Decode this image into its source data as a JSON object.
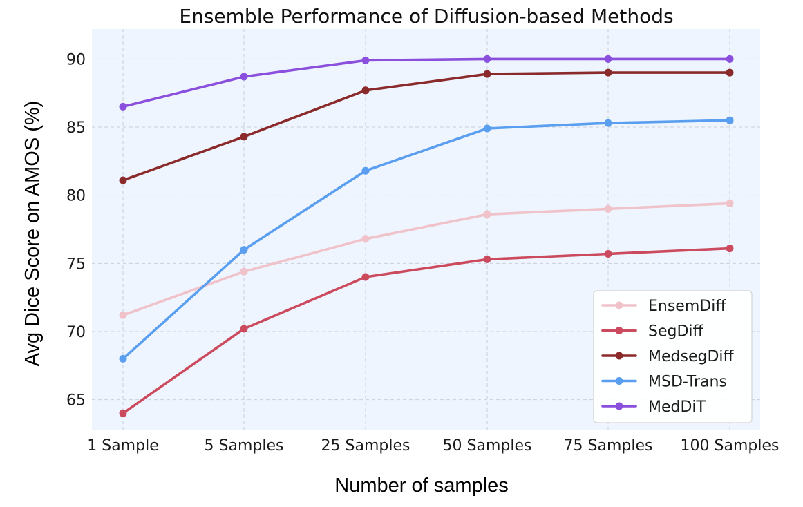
{
  "chart_data": {
    "type": "line",
    "title": "Ensemble Performance of Diffusion-based Methods",
    "xlabel": "Number of samples",
    "ylabel": "Avg Dice Score on AMOS (%)",
    "categories": [
      "1 Sample",
      "5 Samples",
      "25 Samples",
      "50 Samples",
      "75 Samples",
      "100 Samples"
    ],
    "ylim": [
      62.8,
      92.2
    ],
    "yticks": [
      65,
      70,
      75,
      80,
      85,
      90
    ],
    "grid": true,
    "legend_position": "bottom-right",
    "plot_background": "#eef5fe",
    "series": [
      {
        "name": "EnsemDiff",
        "color": "#f0c2c9",
        "values": [
          71.2,
          74.4,
          76.8,
          78.6,
          79.0,
          79.4
        ]
      },
      {
        "name": "SegDiff",
        "color": "#cc4a5e",
        "values": [
          64.0,
          70.2,
          74.0,
          75.3,
          75.7,
          76.1
        ]
      },
      {
        "name": "MedsegDiff",
        "color": "#8b2a2a",
        "values": [
          81.1,
          84.3,
          87.7,
          88.9,
          89.0,
          89.0
        ]
      },
      {
        "name": "MSD-Trans",
        "color": "#5a9ef0",
        "values": [
          68.0,
          76.0,
          81.8,
          84.9,
          85.3,
          85.5
        ]
      },
      {
        "name": "MedDiT",
        "color": "#8a4fdc",
        "values": [
          86.5,
          88.7,
          89.9,
          90.0,
          90.0,
          90.0
        ]
      }
    ]
  }
}
